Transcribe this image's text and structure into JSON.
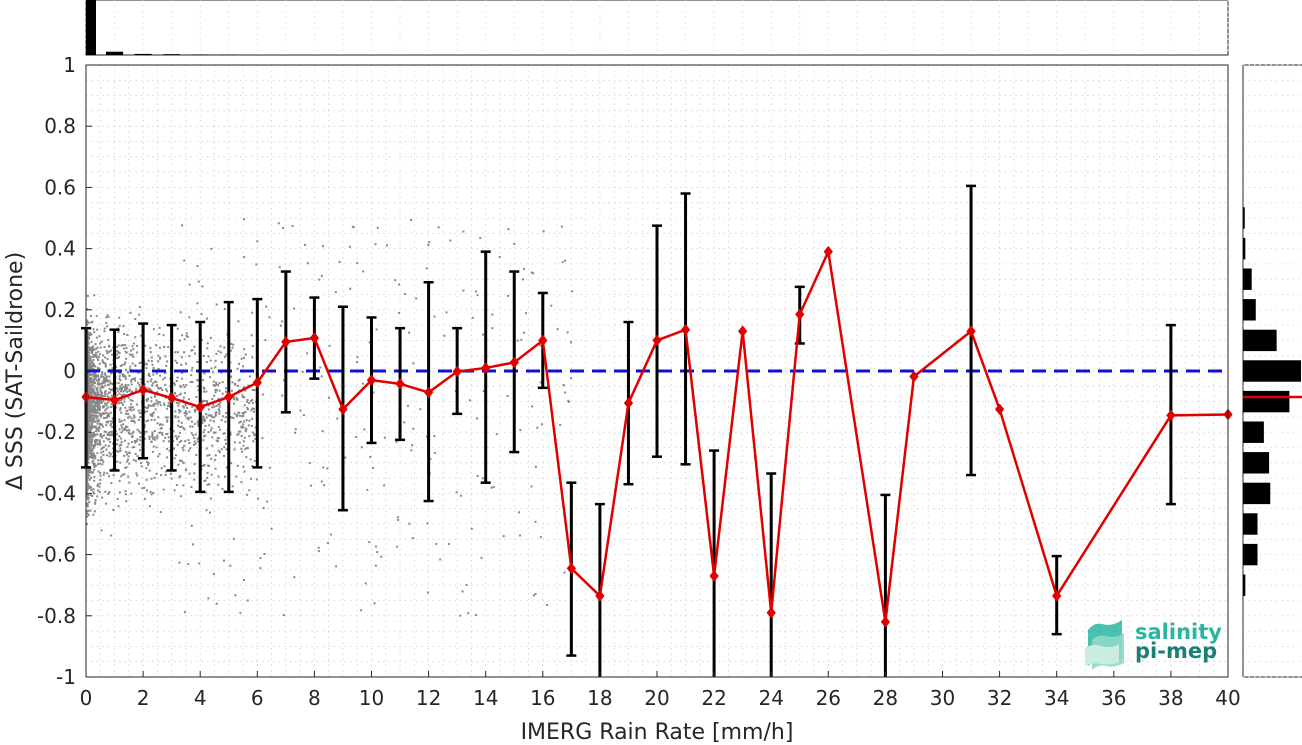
{
  "chart_data": {
    "type": "line",
    "xlabel": "IMERG Rain Rate [mm/h]",
    "ylabel": "Δ SSS (SAT-Saildrone)",
    "xlim": [
      0,
      40
    ],
    "ylim": [
      -1,
      1
    ],
    "xticks": [
      "0",
      "2",
      "4",
      "6",
      "8",
      "10",
      "12",
      "14",
      "16",
      "18",
      "20",
      "22",
      "24",
      "26",
      "28",
      "30",
      "32",
      "34",
      "36",
      "38",
      "40"
    ],
    "yticks": [
      "1",
      "0.8",
      "0.6",
      "0.4",
      "0.2",
      "0",
      "-0.2",
      "-0.4",
      "-0.6",
      "-0.8",
      "-1"
    ],
    "grid": true,
    "reference_line": {
      "y": 0,
      "style": "dashed",
      "color": "#1010d0"
    },
    "series": [
      {
        "color": "#e00000",
        "marker": "diamond",
        "x": [
          0,
          1,
          2,
          3,
          4,
          5,
          6,
          7,
          8,
          9,
          10,
          11,
          12,
          13,
          14,
          15,
          16,
          17,
          18,
          19,
          20,
          21,
          22,
          23,
          24,
          25,
          26,
          28,
          29,
          31,
          32,
          34,
          38,
          40
        ],
        "y": [
          -0.085,
          -0.095,
          -0.062,
          -0.088,
          -0.118,
          -0.085,
          -0.038,
          0.095,
          0.108,
          -0.125,
          -0.03,
          -0.042,
          -0.07,
          -0.002,
          0.01,
          0.028,
          0.1,
          -0.645,
          -0.735,
          -0.105,
          0.1,
          0.135,
          -0.67,
          0.13,
          -0.79,
          0.185,
          0.39,
          -0.82,
          -0.018,
          0.13,
          -0.125,
          -0.735,
          -0.145,
          -0.142
        ],
        "err_low": [
          -0.315,
          -0.325,
          -0.285,
          -0.325,
          -0.395,
          -0.395,
          -0.315,
          -0.135,
          -0.025,
          -0.455,
          -0.235,
          -0.225,
          -0.425,
          -0.14,
          -0.365,
          -0.265,
          -0.055,
          -0.93,
          -1.0,
          -0.37,
          -0.28,
          -0.305,
          -1.0,
          null,
          -1.0,
          0.09,
          null,
          -1.0,
          null,
          -0.34,
          null,
          -0.86,
          -0.435,
          null
        ],
        "err_high": [
          0.14,
          0.135,
          0.155,
          0.15,
          0.16,
          0.225,
          0.235,
          0.325,
          0.24,
          0.21,
          0.175,
          0.14,
          0.29,
          0.14,
          0.39,
          0.325,
          0.255,
          -0.365,
          -0.435,
          0.16,
          0.475,
          0.58,
          -0.26,
          null,
          -0.335,
          0.275,
          null,
          -0.405,
          null,
          0.605,
          null,
          -0.605,
          0.15,
          null
        ]
      }
    ],
    "scatter_density": {
      "color": "#888888",
      "x_range": [
        0,
        17
      ],
      "y_range": [
        -1,
        1
      ]
    },
    "top_histogram": {
      "bins": [
        0,
        1,
        2,
        3,
        4,
        5
      ],
      "relative_heights": [
        1.0,
        0.06,
        0.02,
        0.015,
        0.01,
        0.008
      ]
    },
    "right_histogram": {
      "y_centers": [
        0.3,
        0.2,
        0.1,
        0.0,
        -0.1,
        -0.2,
        -0.3,
        -0.4,
        -0.5,
        -0.6,
        -0.7,
        0.4,
        0.5
      ],
      "relative_widths": [
        0.15,
        0.22,
        0.58,
        1.0,
        0.8,
        0.36,
        0.45,
        0.47,
        0.25,
        0.25,
        0.04,
        0.04,
        0.03
      ],
      "mean_line_y": -0.085,
      "mean_line_color": "#e00000"
    }
  },
  "logo": {
    "line1": "salinity",
    "line2": "pi-mep",
    "color1": "#2ab5a0",
    "color2": "#1a7f76"
  }
}
